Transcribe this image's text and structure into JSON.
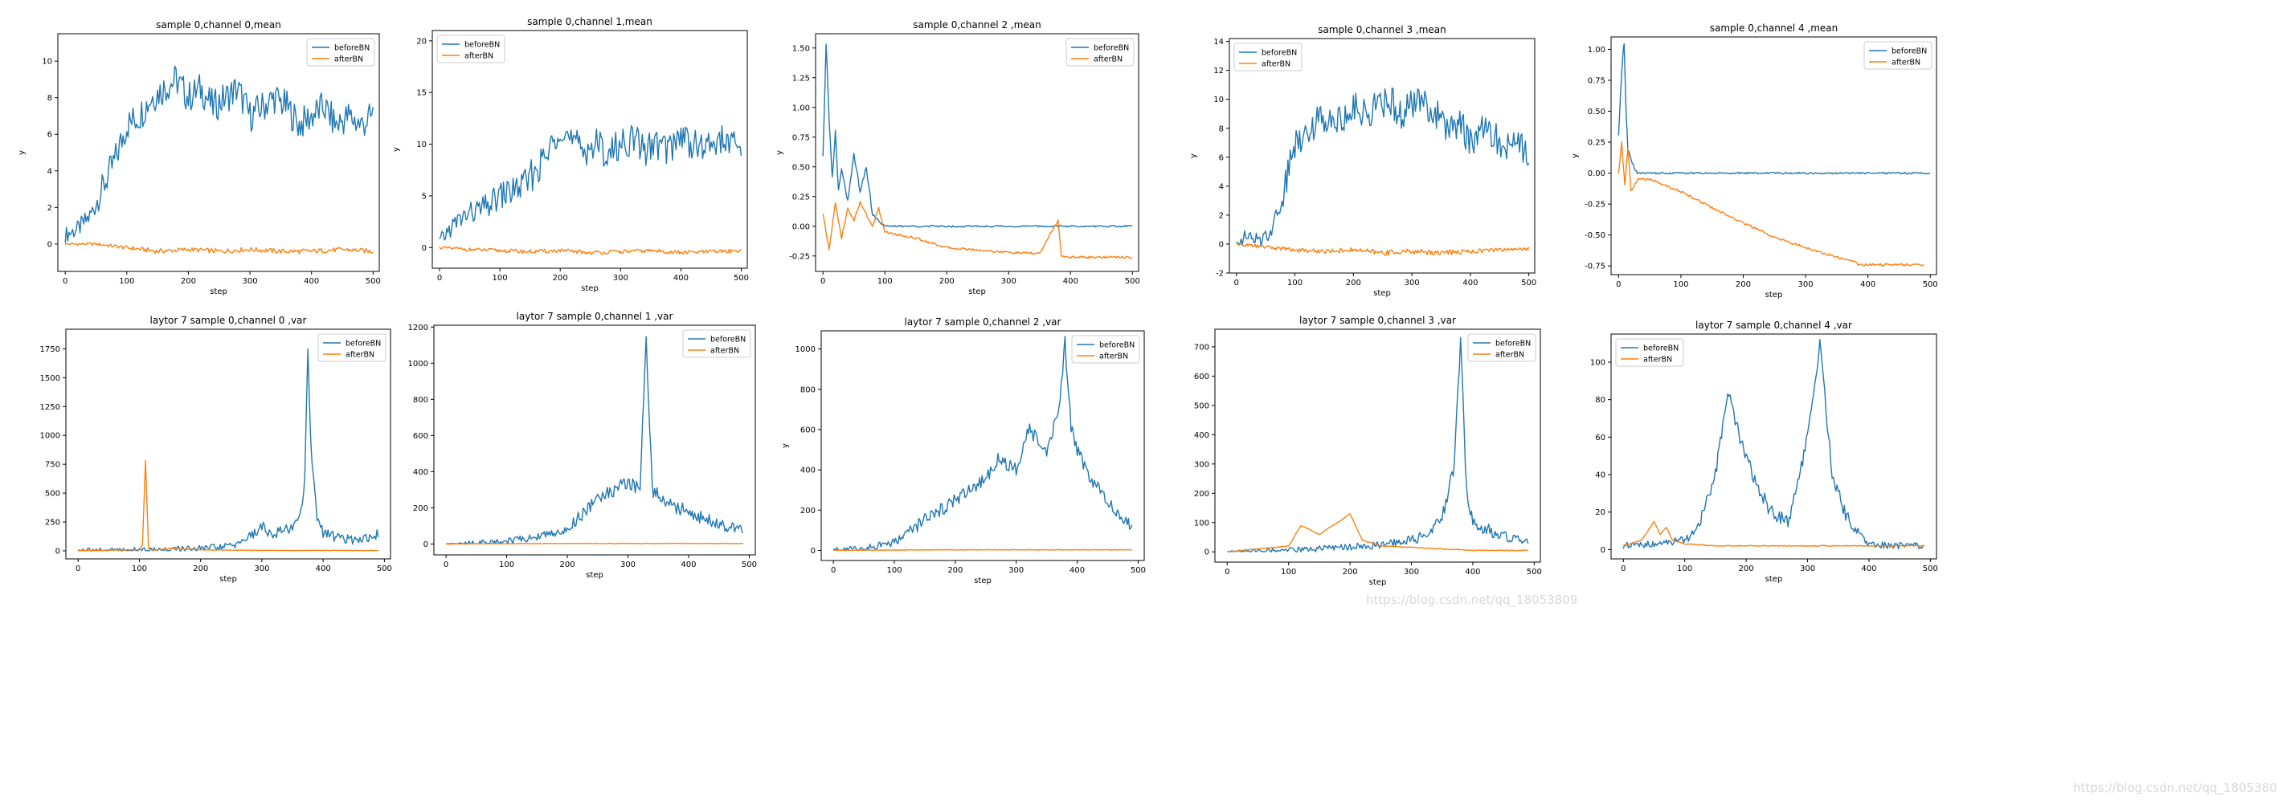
{
  "colors": {
    "beforeBN": "#1f77b4",
    "afterBN": "#ff7f0e"
  },
  "watermark": "https://blog.csdn.net/qq_18053809",
  "chart_data": [
    {
      "type": "line",
      "title": "sample 0,channel 0,mean",
      "xlabel": "step",
      "ylabel": "y",
      "xlim": [
        -12,
        510
      ],
      "ylim": [
        -1.5,
        11.5
      ],
      "xticks": [
        0,
        100,
        200,
        300,
        400,
        500
      ],
      "yticks": [
        0,
        2,
        4,
        6,
        8,
        10
      ],
      "legend": "top-right",
      "grid": false,
      "series": [
        {
          "name": "beforeBN",
          "color": "#1f77b4",
          "x": [
            0,
            20,
            40,
            60,
            80,
            100,
            120,
            140,
            160,
            180,
            200,
            220,
            240,
            260,
            280,
            300,
            320,
            340,
            360,
            380,
            400,
            420,
            440,
            460,
            480,
            500
          ],
          "y": [
            0.5,
            0.8,
            1.5,
            3.0,
            4.5,
            6.5,
            7.0,
            8.0,
            8.5,
            9.0,
            8.0,
            8.5,
            7.5,
            8.0,
            8.5,
            7.0,
            7.5,
            8.0,
            7.5,
            6.5,
            7.0,
            7.5,
            6.5,
            7.0,
            6.5,
            7.0
          ]
        },
        {
          "name": "afterBN",
          "color": "#ff7f0e",
          "x": [
            0,
            50,
            100,
            150,
            200,
            250,
            300,
            350,
            400,
            450,
            500
          ],
          "y": [
            0.0,
            0.0,
            -0.2,
            -0.4,
            -0.3,
            -0.4,
            -0.3,
            -0.4,
            -0.4,
            -0.3,
            -0.4
          ]
        }
      ]
    },
    {
      "type": "line",
      "title": "sample 0,channel 1,mean",
      "xlabel": "step",
      "ylabel": "y",
      "xlim": [
        -12,
        510
      ],
      "ylim": [
        -2,
        21
      ],
      "xticks": [
        0,
        100,
        200,
        300,
        400,
        500
      ],
      "yticks": [
        0,
        5,
        10,
        15,
        20
      ],
      "legend": "top-left",
      "grid": false,
      "series": [
        {
          "name": "beforeBN",
          "color": "#1f77b4",
          "x": [
            0,
            20,
            40,
            60,
            80,
            100,
            120,
            140,
            160,
            180,
            200,
            220,
            240,
            260,
            280,
            300,
            320,
            340,
            360,
            380,
            400,
            420,
            440,
            460,
            480,
            500
          ],
          "y": [
            0.5,
            2.0,
            3.0,
            3.5,
            4.0,
            5.0,
            5.5,
            6.0,
            7.5,
            9.0,
            12.0,
            10.0,
            9.5,
            10.0,
            9.0,
            10.0,
            10.5,
            9.5,
            10.0,
            9.5,
            11.0,
            10.0,
            9.5,
            10.5,
            10.0,
            9.5
          ]
        },
        {
          "name": "afterBN",
          "color": "#ff7f0e",
          "x": [
            0,
            50,
            100,
            150,
            200,
            250,
            300,
            350,
            400,
            450,
            500
          ],
          "y": [
            0.0,
            -0.2,
            -0.3,
            -0.4,
            -0.3,
            -0.5,
            -0.4,
            -0.3,
            -0.5,
            -0.4,
            -0.3
          ]
        }
      ]
    },
    {
      "type": "line",
      "title": "sample 0,channel 2 ,mean",
      "xlabel": "step",
      "ylabel": "y",
      "xlim": [
        -12,
        510
      ],
      "ylim": [
        -0.38,
        1.62
      ],
      "xticks": [
        0,
        100,
        200,
        300,
        400,
        500
      ],
      "yticks": [
        -0.25,
        0.0,
        0.25,
        0.5,
        0.75,
        1.0,
        1.25,
        1.5
      ],
      "legend": "top-right",
      "grid": false,
      "series": [
        {
          "name": "beforeBN",
          "color": "#1f77b4",
          "x": [
            0,
            5,
            10,
            15,
            20,
            25,
            30,
            40,
            50,
            60,
            70,
            80,
            90,
            100,
            500
          ],
          "y": [
            0.6,
            1.55,
            0.9,
            0.4,
            0.8,
            0.3,
            0.5,
            0.2,
            0.6,
            0.3,
            0.5,
            0.1,
            0.05,
            0.0,
            0.0
          ]
        },
        {
          "name": "afterBN",
          "color": "#ff7f0e",
          "x": [
            0,
            10,
            20,
            30,
            40,
            50,
            60,
            70,
            80,
            90,
            100,
            150,
            200,
            250,
            300,
            350,
            380,
            385,
            390,
            450,
            500
          ],
          "y": [
            0.1,
            -0.2,
            0.2,
            -0.1,
            0.15,
            0.05,
            0.2,
            0.1,
            0.0,
            0.15,
            -0.05,
            -0.1,
            -0.18,
            -0.2,
            -0.22,
            -0.23,
            0.05,
            -0.24,
            -0.26,
            -0.26,
            -0.26
          ]
        }
      ]
    },
    {
      "type": "line",
      "title": "sample 0,channel 3 ,mean",
      "xlabel": "step",
      "ylabel": "y",
      "xlim": [
        -12,
        510
      ],
      "ylim": [
        -2,
        14.2
      ],
      "xticks": [
        0,
        100,
        200,
        300,
        400,
        500
      ],
      "yticks": [
        -2,
        0,
        2,
        4,
        6,
        8,
        10,
        12,
        14
      ],
      "legend": "top-left",
      "grid": false,
      "series": [
        {
          "name": "beforeBN",
          "color": "#1f77b4",
          "x": [
            0,
            20,
            40,
            60,
            80,
            100,
            120,
            140,
            160,
            180,
            200,
            220,
            240,
            260,
            280,
            300,
            320,
            340,
            360,
            380,
            400,
            420,
            440,
            460,
            480,
            500
          ],
          "y": [
            0.3,
            0.5,
            0.2,
            1.0,
            3.5,
            7.0,
            8.0,
            8.5,
            9.0,
            8.5,
            9.5,
            9.0,
            9.5,
            10.0,
            9.0,
            9.5,
            10.0,
            9.0,
            8.0,
            8.5,
            7.0,
            8.0,
            7.5,
            6.5,
            7.0,
            6.5
          ]
        },
        {
          "name": "afterBN",
          "color": "#ff7f0e",
          "x": [
            0,
            50,
            100,
            150,
            200,
            250,
            300,
            350,
            400,
            450,
            500
          ],
          "y": [
            0.0,
            -0.2,
            -0.4,
            -0.5,
            -0.4,
            -0.6,
            -0.5,
            -0.6,
            -0.5,
            -0.4,
            -0.3
          ]
        }
      ]
    },
    {
      "type": "line",
      "title": "sample 0,channel 4 ,mean",
      "xlabel": "step",
      "ylabel": "y",
      "xlim": [
        -12,
        510
      ],
      "ylim": [
        -0.82,
        1.1
      ],
      "xticks": [
        0,
        100,
        200,
        300,
        400,
        500
      ],
      "yticks": [
        -0.75,
        -0.5,
        -0.25,
        0.0,
        0.25,
        0.5,
        0.75,
        1.0
      ],
      "legend": "top-right",
      "grid": false,
      "series": [
        {
          "name": "beforeBN",
          "color": "#1f77b4",
          "x": [
            0,
            3,
            6,
            9,
            12,
            15,
            20,
            25,
            30,
            500
          ],
          "y": [
            0.3,
            0.6,
            0.9,
            1.05,
            0.5,
            0.2,
            0.1,
            0.05,
            0.0,
            0.0
          ]
        },
        {
          "name": "afterBN",
          "color": "#ff7f0e",
          "x": [
            0,
            5,
            10,
            15,
            20,
            30,
            50,
            100,
            150,
            200,
            250,
            300,
            350,
            380,
            385,
            400,
            450,
            490
          ],
          "y": [
            0.0,
            0.25,
            -0.1,
            0.2,
            -0.15,
            -0.05,
            -0.05,
            -0.15,
            -0.28,
            -0.4,
            -0.52,
            -0.6,
            -0.68,
            -0.72,
            -0.74,
            -0.74,
            -0.74,
            -0.74
          ]
        }
      ]
    },
    {
      "type": "line",
      "title": "laytor 7  sample 0,channel 0 ,var",
      "xlabel": "step",
      "ylabel": "",
      "xlim": [
        -20,
        510
      ],
      "ylim": [
        -70,
        1920
      ],
      "xticks": [
        0,
        100,
        200,
        300,
        400,
        500
      ],
      "yticks": [
        0,
        250,
        500,
        750,
        1000,
        1250,
        1500,
        1750
      ],
      "legend": "top-right",
      "grid": false,
      "series": [
        {
          "name": "beforeBN",
          "color": "#1f77b4",
          "x": [
            0,
            50,
            100,
            150,
            200,
            250,
            280,
            300,
            320,
            340,
            360,
            370,
            375,
            380,
            390,
            400,
            420,
            440,
            460,
            490
          ],
          "y": [
            0,
            2,
            5,
            10,
            20,
            40,
            120,
            200,
            150,
            180,
            250,
            600,
            1800,
            900,
            300,
            150,
            120,
            100,
            90,
            150
          ]
        },
        {
          "name": "afterBN",
          "color": "#ff7f0e",
          "x": [
            0,
            50,
            100,
            105,
            110,
            115,
            120,
            150,
            200,
            250,
            300,
            350,
            400,
            450,
            490
          ],
          "y": [
            0,
            5,
            10,
            50,
            780,
            20,
            5,
            20,
            10,
            5,
            3,
            3,
            3,
            3,
            3
          ]
        }
      ]
    },
    {
      "type": "line",
      "title": "laytor 7  sample 0,channel 1 ,var",
      "xlabel": "step",
      "ylabel": "",
      "xlim": [
        -20,
        510
      ],
      "ylim": [
        -60,
        1210
      ],
      "xticks": [
        0,
        100,
        200,
        300,
        400,
        500
      ],
      "yticks": [
        0,
        200,
        400,
        600,
        800,
        1000,
        1200
      ],
      "legend": "top-right",
      "grid": false,
      "series": [
        {
          "name": "beforeBN",
          "color": "#1f77b4",
          "x": [
            0,
            50,
            100,
            150,
            200,
            220,
            250,
            280,
            300,
            320,
            330,
            340,
            360,
            380,
            400,
            420,
            440,
            460,
            490
          ],
          "y": [
            0,
            5,
            15,
            40,
            80,
            150,
            250,
            300,
            350,
            300,
            1140,
            300,
            250,
            200,
            180,
            150,
            120,
            100,
            80
          ]
        },
        {
          "name": "afterBN",
          "color": "#ff7f0e",
          "x": [
            0,
            100,
            200,
            300,
            400,
            490
          ],
          "y": [
            0,
            2,
            3,
            3,
            3,
            3
          ]
        }
      ]
    },
    {
      "type": "line",
      "title": "laytor 7  sample 0,channel 2 ,var",
      "xlabel": "step",
      "ylabel": "y",
      "xlim": [
        -20,
        510
      ],
      "ylim": [
        -50,
        1090
      ],
      "xticks": [
        0,
        100,
        200,
        300,
        400,
        500
      ],
      "yticks": [
        0,
        200,
        400,
        600,
        800,
        1000
      ],
      "legend": "top-right",
      "grid": false,
      "series": [
        {
          "name": "beforeBN",
          "color": "#1f77b4",
          "x": [
            0,
            50,
            100,
            150,
            200,
            250,
            270,
            300,
            320,
            350,
            370,
            380,
            390,
            400,
            420,
            440,
            460,
            480,
            490
          ],
          "y": [
            0,
            10,
            40,
            150,
            250,
            350,
            450,
            400,
            600,
            500,
            700,
            1030,
            600,
            500,
            350,
            300,
            200,
            150,
            100
          ]
        },
        {
          "name": "afterBN",
          "color": "#ff7f0e",
          "x": [
            0,
            100,
            200,
            300,
            400,
            490
          ],
          "y": [
            0,
            2,
            3,
            3,
            3,
            3
          ]
        }
      ]
    },
    {
      "type": "line",
      "title": "laytor 7  sample 0,channel 3 ,var",
      "xlabel": "step",
      "ylabel": "",
      "xlim": [
        -20,
        510
      ],
      "ylim": [
        -35,
        760
      ],
      "xticks": [
        0,
        100,
        200,
        300,
        400,
        500
      ],
      "yticks": [
        0,
        100,
        200,
        300,
        400,
        500,
        600,
        700
      ],
      "legend": "top-right",
      "grid": false,
      "series": [
        {
          "name": "beforeBN",
          "color": "#1f77b4",
          "x": [
            0,
            50,
            100,
            150,
            200,
            250,
            300,
            330,
            350,
            370,
            380,
            390,
            400,
            420,
            440,
            460,
            480,
            490
          ],
          "y": [
            0,
            2,
            5,
            10,
            15,
            25,
            40,
            60,
            120,
            300,
            720,
            200,
            100,
            80,
            60,
            50,
            40,
            30
          ]
        },
        {
          "name": "afterBN",
          "color": "#ff7f0e",
          "x": [
            0,
            50,
            100,
            120,
            150,
            180,
            200,
            220,
            250,
            300,
            350,
            400,
            490
          ],
          "y": [
            0,
            10,
            20,
            90,
            60,
            100,
            130,
            40,
            20,
            15,
            10,
            5,
            5
          ]
        }
      ]
    },
    {
      "type": "line",
      "title": "laytor 7  sample 0,channel 4 ,var",
      "xlabel": "step",
      "ylabel": "",
      "xlim": [
        -20,
        510
      ],
      "ylim": [
        -5,
        115
      ],
      "xticks": [
        0,
        100,
        200,
        300,
        400,
        500
      ],
      "yticks": [
        0,
        20,
        40,
        60,
        80,
        100
      ],
      "legend": "top-left",
      "grid": false,
      "series": [
        {
          "name": "beforeBN",
          "color": "#1f77b4",
          "x": [
            0,
            50,
            100,
            120,
            150,
            170,
            190,
            210,
            240,
            270,
            300,
            320,
            340,
            360,
            380,
            400,
            450,
            490
          ],
          "y": [
            2,
            3,
            5,
            10,
            40,
            85,
            60,
            40,
            20,
            15,
            60,
            110,
            40,
            20,
            10,
            3,
            2,
            2
          ]
        },
        {
          "name": "afterBN",
          "color": "#ff7f0e",
          "x": [
            0,
            30,
            50,
            60,
            70,
            80,
            100,
            150,
            200,
            300,
            400,
            490
          ],
          "y": [
            2,
            5,
            15,
            8,
            12,
            5,
            3,
            2,
            2,
            2,
            2,
            2
          ]
        }
      ]
    }
  ]
}
